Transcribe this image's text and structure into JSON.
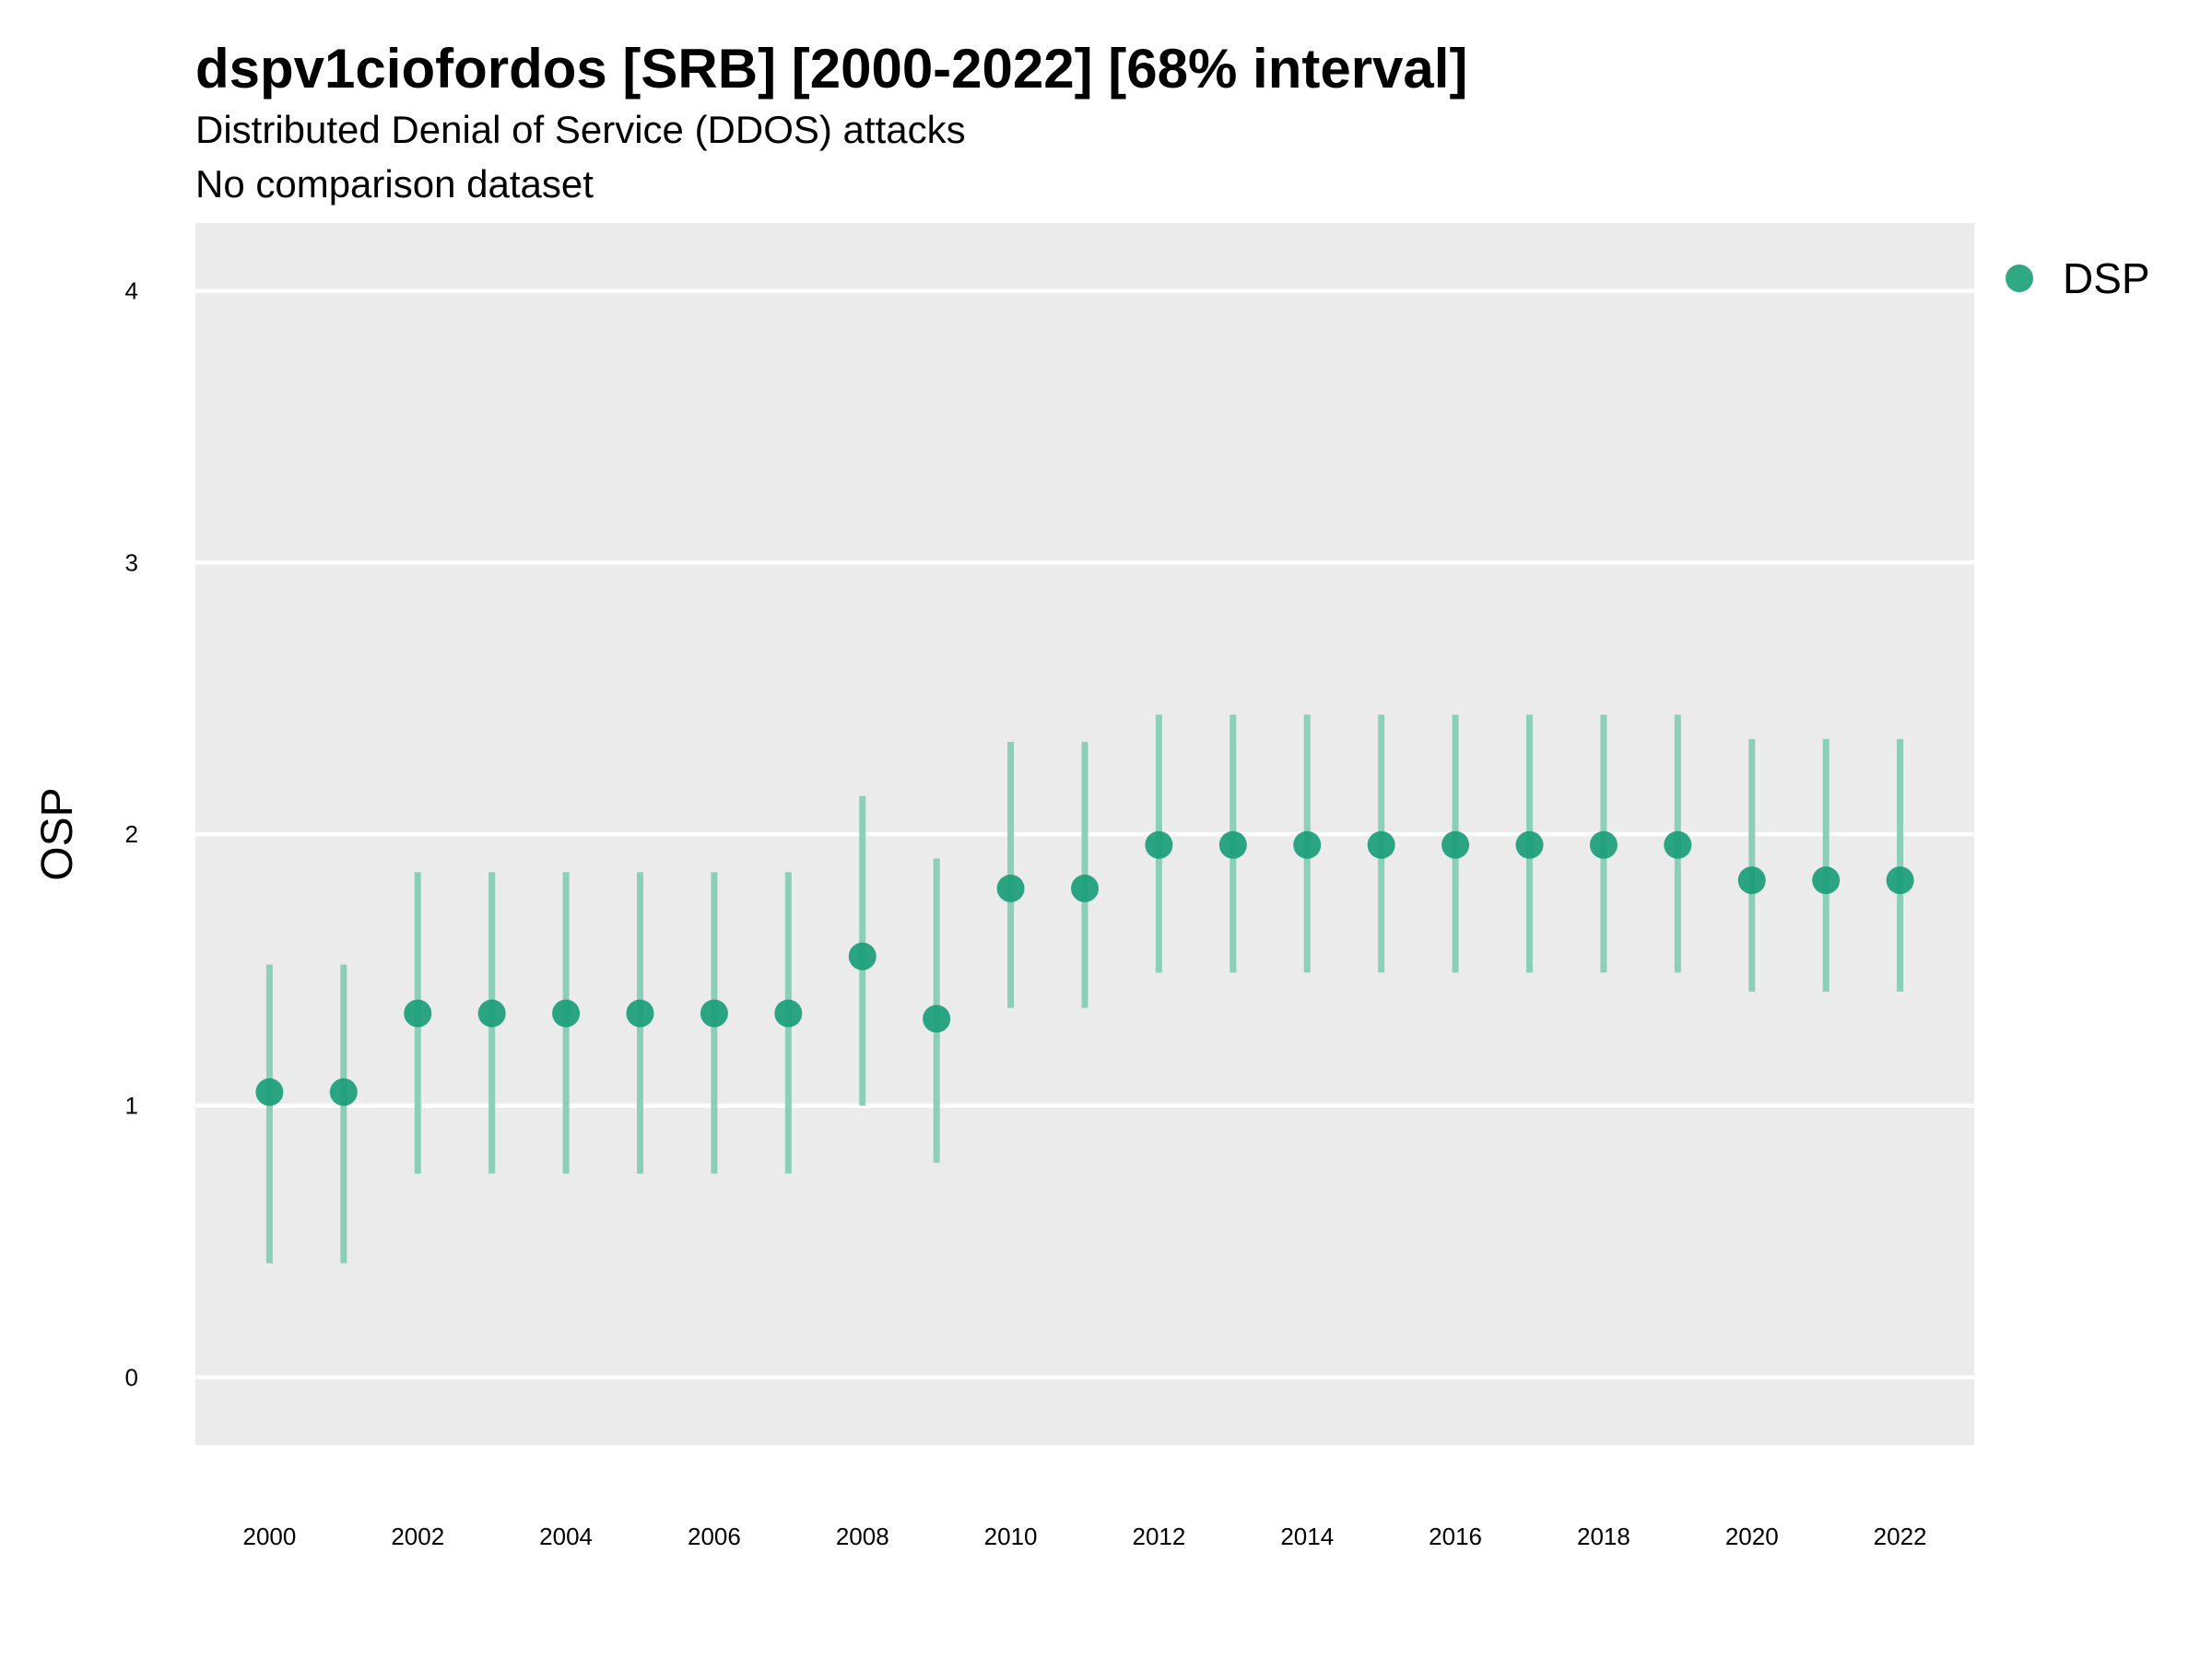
{
  "chart_data": {
    "type": "scatter",
    "title": "dspv1ciofordos [SRB] [2000-2022] [68% interval]",
    "subtitle": "Distributed Denial of Service (DDOS) attacks",
    "caption": "No comparison dataset",
    "xlabel": "",
    "ylabel": "OSP",
    "xlim": [
      1999,
      2023
    ],
    "ylim": [
      -0.25,
      4.25
    ],
    "x_ticks": [
      "2000",
      "2002",
      "2004",
      "2006",
      "2008",
      "2010",
      "2012",
      "2014",
      "2016",
      "2018",
      "2020",
      "2022"
    ],
    "y_ticks": [
      "0",
      "1",
      "2",
      "3",
      "4"
    ],
    "grid": true,
    "legend_position": "top-right",
    "colors": {
      "point": "#1a9e77",
      "interval": "#8ccfb8",
      "panel": "#ebebeb",
      "grid": "#ffffff"
    },
    "series": [
      {
        "name": "DSP",
        "x": [
          2000,
          2001,
          2002,
          2003,
          2004,
          2005,
          2006,
          2007,
          2008,
          2009,
          2010,
          2011,
          2012,
          2013,
          2014,
          2015,
          2016,
          2017,
          2018,
          2019,
          2020,
          2021,
          2022
        ],
        "y": [
          1.05,
          1.05,
          1.34,
          1.34,
          1.34,
          1.34,
          1.34,
          1.34,
          1.55,
          1.32,
          1.8,
          1.8,
          1.96,
          1.96,
          1.96,
          1.96,
          1.96,
          1.96,
          1.96,
          1.96,
          1.83,
          1.83,
          1.83
        ],
        "lower": [
          0.42,
          0.42,
          0.75,
          0.75,
          0.75,
          0.75,
          0.75,
          0.75,
          1.0,
          0.79,
          1.36,
          1.36,
          1.49,
          1.49,
          1.49,
          1.49,
          1.49,
          1.49,
          1.49,
          1.49,
          1.42,
          1.42,
          1.42
        ],
        "upper": [
          1.52,
          1.52,
          1.86,
          1.86,
          1.86,
          1.86,
          1.86,
          1.86,
          2.14,
          1.91,
          2.34,
          2.34,
          2.44,
          2.44,
          2.44,
          2.44,
          2.44,
          2.44,
          2.44,
          2.44,
          2.35,
          2.35,
          2.35
        ]
      }
    ]
  }
}
